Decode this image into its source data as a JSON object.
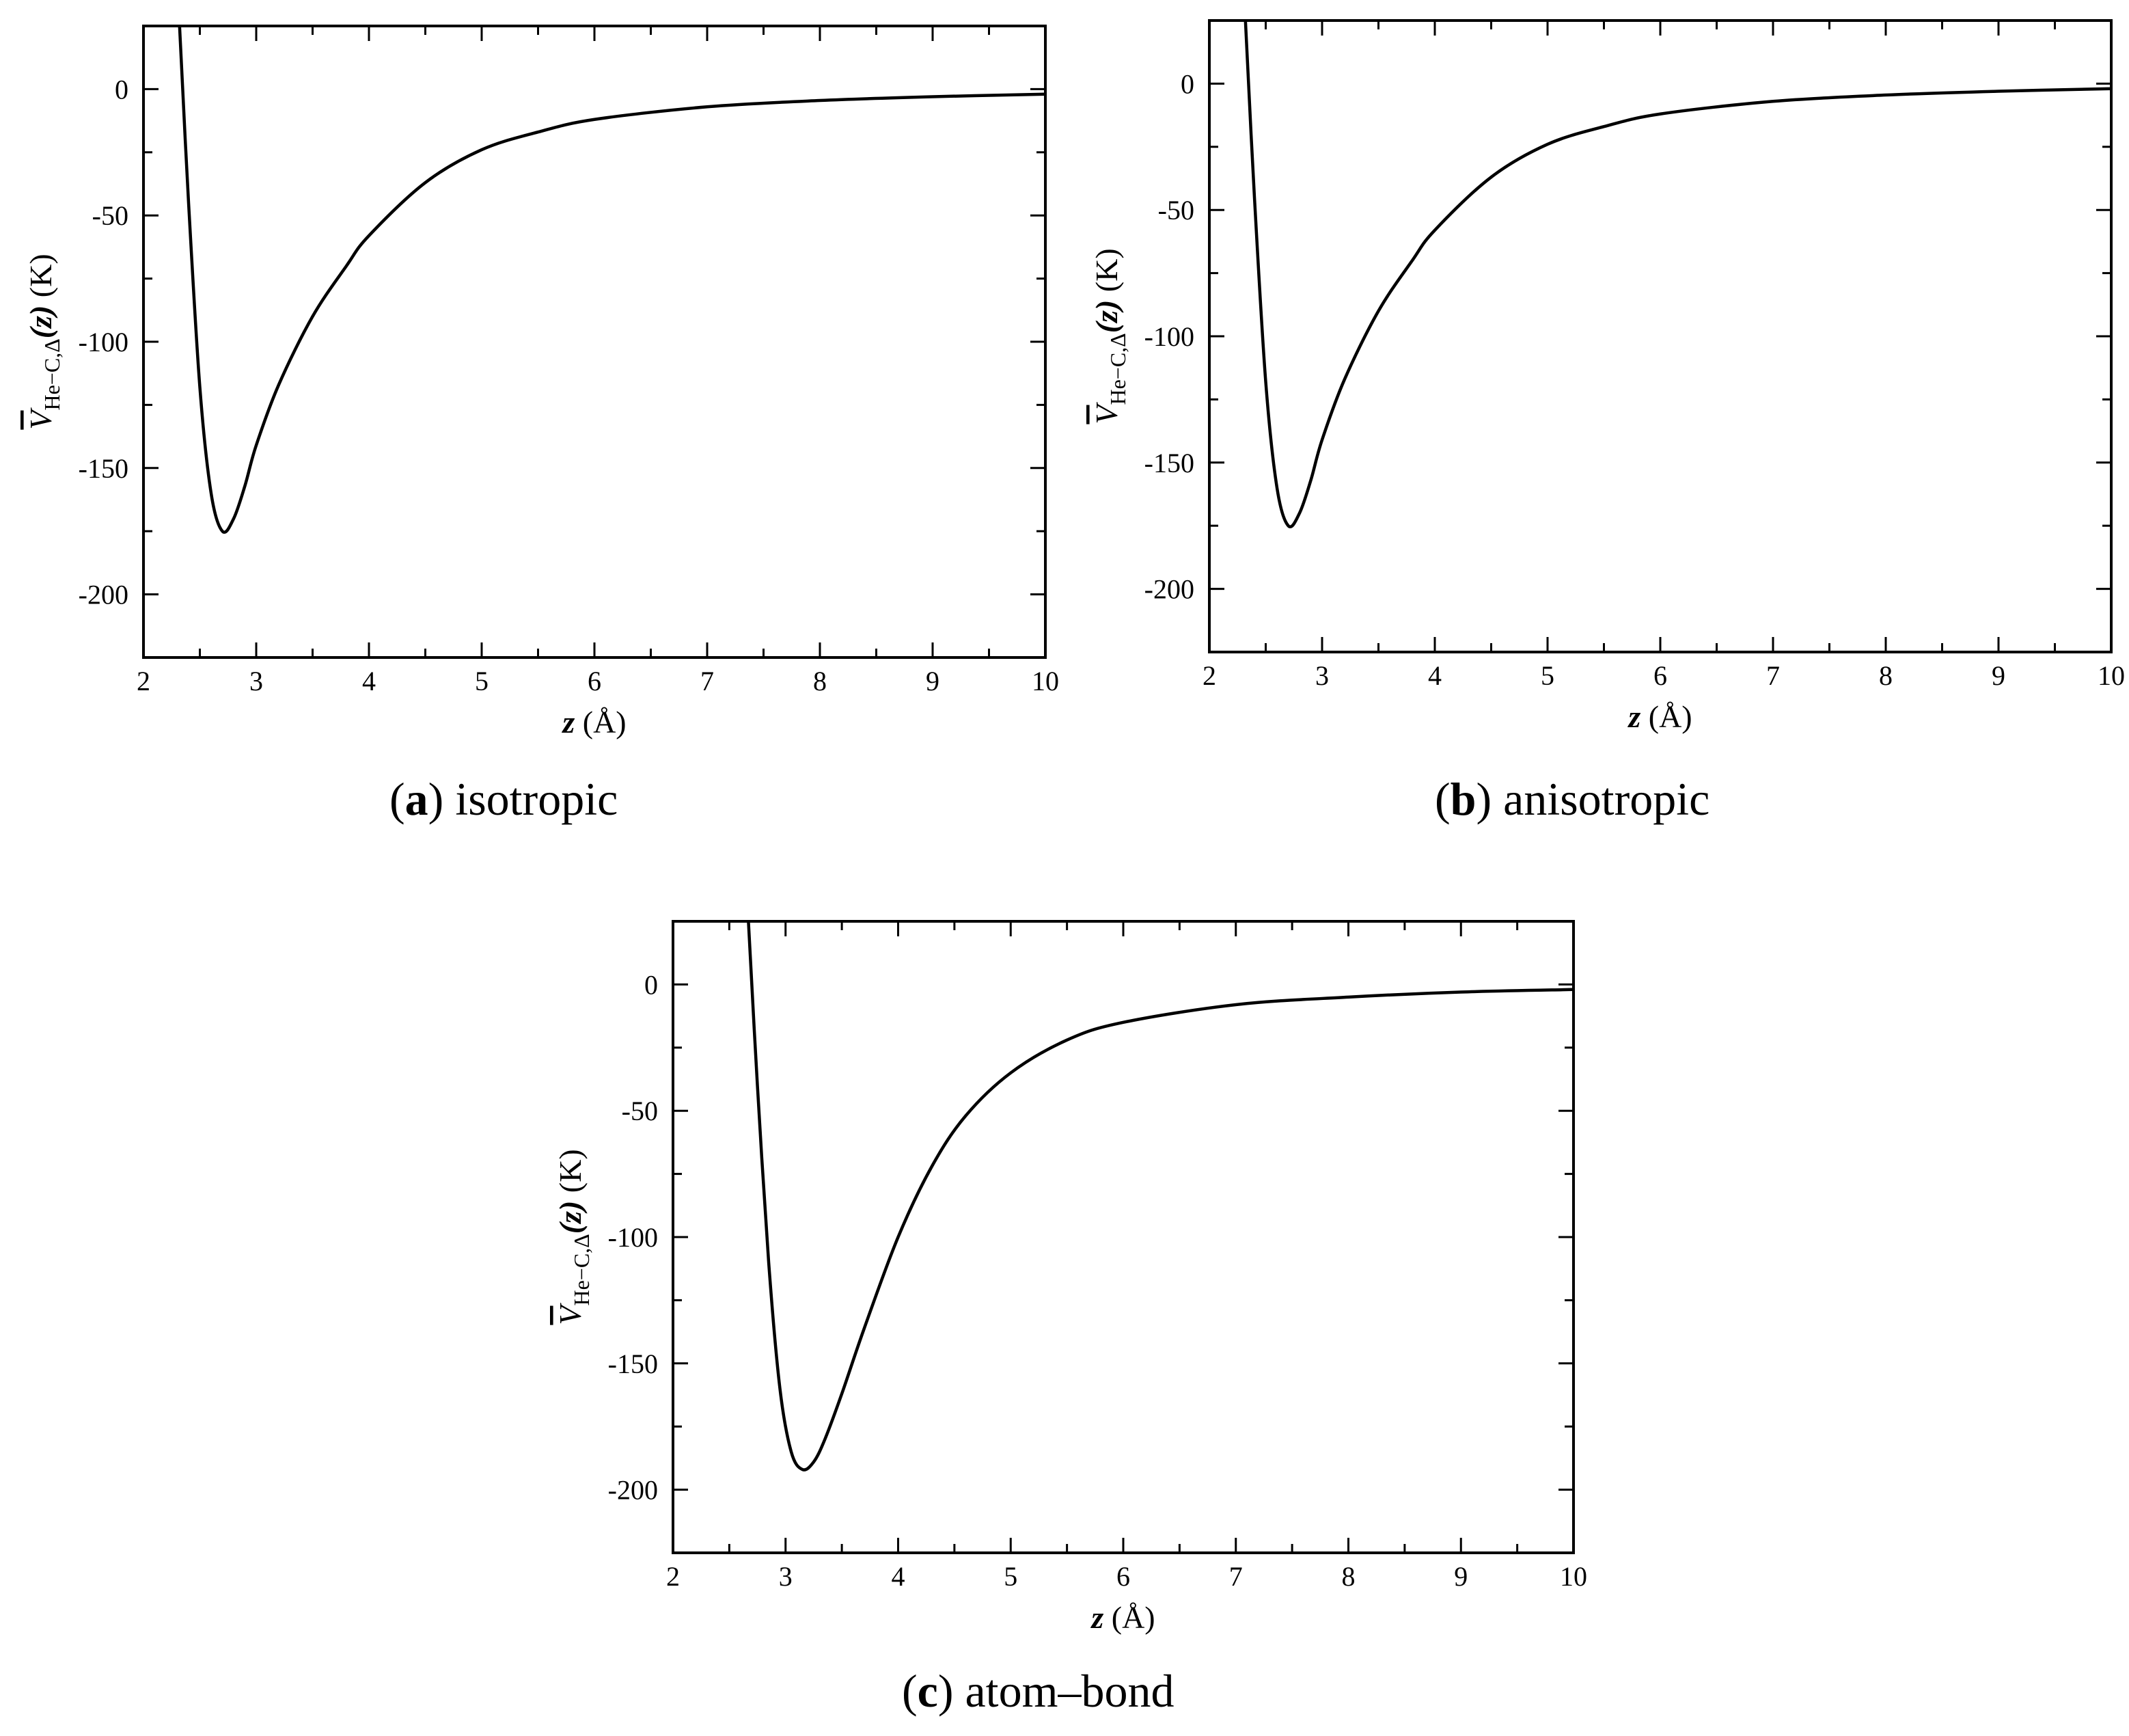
{
  "chart_data": [
    {
      "type": "line",
      "caption_letter": "a",
      "caption_text": "isotropic",
      "xlabel": {
        "var": "z",
        "unit": "(Å)"
      },
      "ylabel": {
        "var": "V",
        "sub": "He−C,Δ",
        "arg": "(z)",
        "unit": "(K)"
      },
      "xlim": [
        2,
        10
      ],
      "ylim": [
        -225,
        25
      ],
      "xticks": [
        2,
        3,
        4,
        5,
        6,
        7,
        8,
        9,
        10
      ],
      "yticks": [
        0,
        -50,
        -100,
        -150,
        -200
      ],
      "series": [
        {
          "x": [
            2.32,
            2.4,
            2.5,
            2.6,
            2.7,
            2.8,
            2.9,
            3.0,
            3.2,
            3.5,
            3.8,
            4.0,
            4.5,
            5.0,
            5.5,
            6.0,
            7.0,
            8.0,
            9.0,
            10.0
          ],
          "y": [
            25,
            -45,
            -118,
            -160,
            -175,
            -170,
            -157,
            -141,
            -117,
            -90,
            -70,
            -58,
            -37,
            -24,
            -17,
            -12,
            -7,
            -4.5,
            -3,
            -2
          ]
        }
      ]
    },
    {
      "type": "line",
      "caption_letter": "b",
      "caption_text": "anisotropic",
      "xlabel": {
        "var": "z",
        "unit": "(Å)"
      },
      "ylabel": {
        "var": "V",
        "sub": "He−C,Δ",
        "arg": "(z)",
        "unit": "(K)"
      },
      "xlim": [
        2,
        10
      ],
      "ylim": [
        -225,
        25
      ],
      "xticks": [
        2,
        3,
        4,
        5,
        6,
        7,
        8,
        9,
        10
      ],
      "yticks": [
        0,
        -50,
        -100,
        -150,
        -200
      ],
      "series": [
        {
          "x": [
            2.32,
            2.4,
            2.5,
            2.6,
            2.7,
            2.8,
            2.9,
            3.0,
            3.2,
            3.5,
            3.8,
            4.0,
            4.5,
            5.0,
            5.5,
            6.0,
            7.0,
            8.0,
            9.0,
            10.0
          ],
          "y": [
            25,
            -45,
            -118,
            -160,
            -175,
            -170,
            -157,
            -141,
            -117,
            -90,
            -70,
            -58,
            -37,
            -24,
            -17,
            -12,
            -7,
            -4.5,
            -3,
            -2
          ]
        }
      ]
    },
    {
      "type": "line",
      "caption_letter": "c",
      "caption_text": "atom–bond",
      "xlabel": {
        "var": "z",
        "unit": "(Å)"
      },
      "ylabel": {
        "var": "V",
        "sub": "He−C,Δ",
        "arg": "(z)",
        "unit": "(K)"
      },
      "xlim": [
        2,
        10
      ],
      "ylim": [
        -225,
        25
      ],
      "xticks": [
        2,
        3,
        4,
        5,
        6,
        7,
        8,
        9,
        10
      ],
      "yticks": [
        0,
        -50,
        -100,
        -150,
        -200
      ],
      "series": [
        {
          "x": [
            2.67,
            2.75,
            2.85,
            2.95,
            3.05,
            3.15,
            3.25,
            3.35,
            3.5,
            3.7,
            4.0,
            4.3,
            4.6,
            5.0,
            5.5,
            6.0,
            7.0,
            8.0,
            9.0,
            10.0
          ],
          "y": [
            25,
            -40,
            -110,
            -160,
            -185,
            -192,
            -189,
            -180,
            -162,
            -136,
            -100,
            -72,
            -52,
            -35,
            -22,
            -15,
            -8,
            -5,
            -3,
            -2
          ]
        }
      ]
    }
  ]
}
